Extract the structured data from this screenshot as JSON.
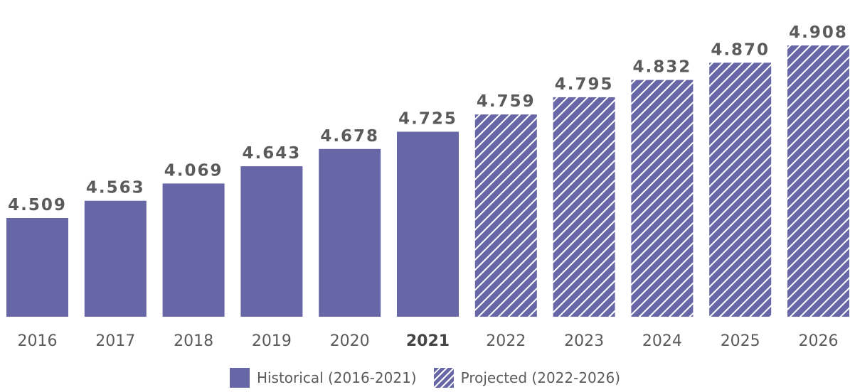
{
  "chart_data": {
    "type": "bar",
    "title": "",
    "xlabel": "",
    "ylabel": "",
    "categories": [
      "2016",
      "2017",
      "2018",
      "2019",
      "2020",
      "2021",
      "2022",
      "2023",
      "2024",
      "2025",
      "2026"
    ],
    "values": [
      4.509,
      4.563,
      4.069,
      4.643,
      4.678,
      4.725,
      4.759,
      4.795,
      4.832,
      4.87,
      4.908
    ],
    "value_labels": [
      "4.509",
      "4.563",
      "4.069",
      "4.643",
      "4.678",
      "4.725",
      "4.759",
      "4.795",
      "4.832",
      "4.870",
      "4.908"
    ],
    "historical_count": 6,
    "highlighted_category": "2021",
    "grid": false,
    "legend_position": "bottom-center",
    "colors": {
      "bar": "#6767a8",
      "hatch": "#ffffff",
      "text": "#5b5b5b"
    },
    "legend": [
      {
        "label": "Historical (2016-2021)",
        "style": "solid"
      },
      {
        "label": "Projected (2022-2026)",
        "style": "hatched"
      }
    ]
  }
}
